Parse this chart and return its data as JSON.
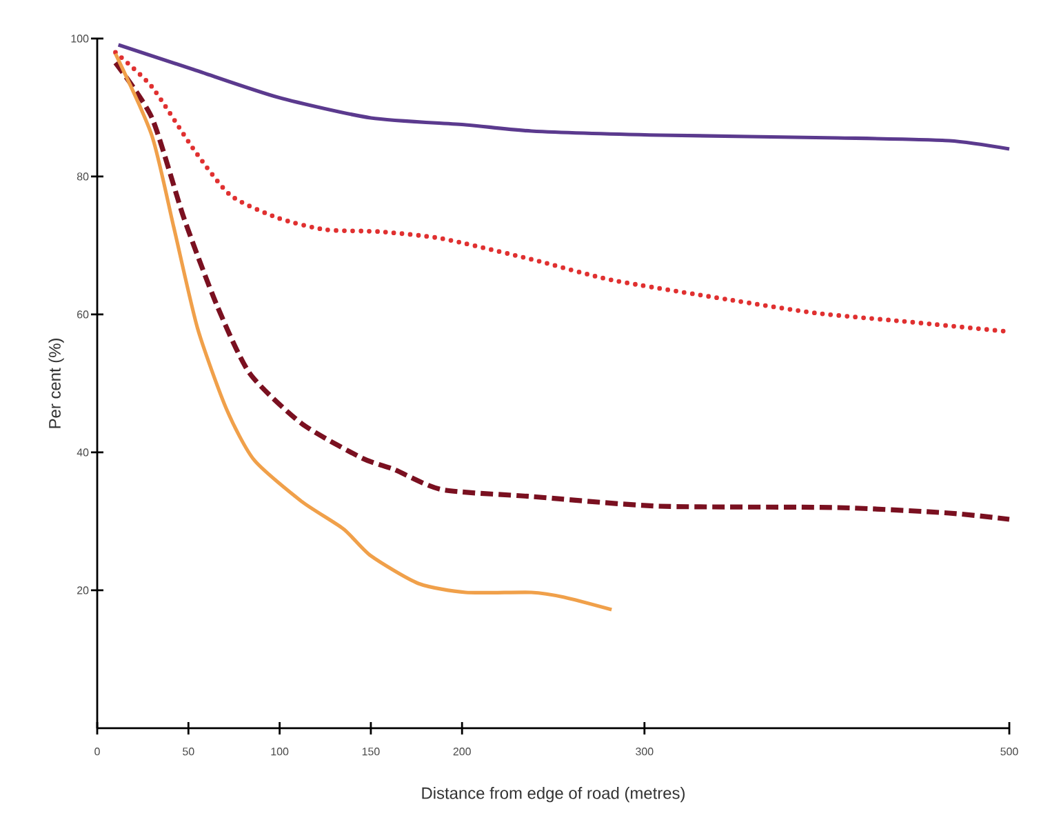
{
  "chart_data": {
    "type": "line",
    "xlabel": "Distance from edge of road (metres)",
    "ylabel": "Per cent (%)",
    "xlim": [
      0,
      500
    ],
    "xticks": [
      0,
      50,
      100,
      150,
      200,
      300,
      500
    ],
    "ylim": [
      0,
      100
    ],
    "yticks": [
      20,
      40,
      60,
      80,
      100
    ],
    "grid": false,
    "legend": false,
    "marker": "none",
    "series": [
      {
        "color": "#5b3a8e",
        "line_style": "solid",
        "x": [
          11.6,
          53,
          99,
          150,
          202,
          238,
          309,
          406,
          467,
          500
        ],
        "values": [
          99.1,
          95.5,
          91.5,
          88.5,
          87.5,
          86.6,
          86,
          85.6,
          85.2,
          84
        ]
      },
      {
        "color": "#e03030",
        "line_style": "dotted",
        "x": [
          10,
          30,
          53,
          73,
          99,
          125,
          155,
          189,
          238,
          282,
          345,
          394,
          442,
          500
        ],
        "values": [
          98,
          93,
          83.9,
          77.3,
          74,
          72.3,
          72,
          71,
          68,
          65,
          62.2,
          60.2,
          59,
          57.5
        ]
      },
      {
        "color": "#7a1020",
        "line_style": "dashed",
        "x": [
          10,
          30,
          47.5,
          65.5,
          83.5,
          112,
          145,
          163,
          189,
          238,
          308,
          406,
          467,
          500
        ],
        "values": [
          96.5,
          88.5,
          74,
          61.4,
          51.5,
          44.2,
          39.2,
          37.5,
          34.6,
          33.6,
          32.2,
          32,
          31.2,
          30.3
        ]
      },
      {
        "color": "#f0a04a",
        "line_style": "solid",
        "x": [
          10,
          30,
          42,
          55,
          71,
          86,
          112,
          135,
          150,
          176,
          202,
          238,
          256,
          282
        ],
        "values": [
          97.8,
          85.9,
          72.6,
          58,
          46.2,
          38.9,
          32.9,
          28.9,
          25,
          21,
          19.7,
          19.7,
          19,
          17.2
        ]
      }
    ]
  }
}
